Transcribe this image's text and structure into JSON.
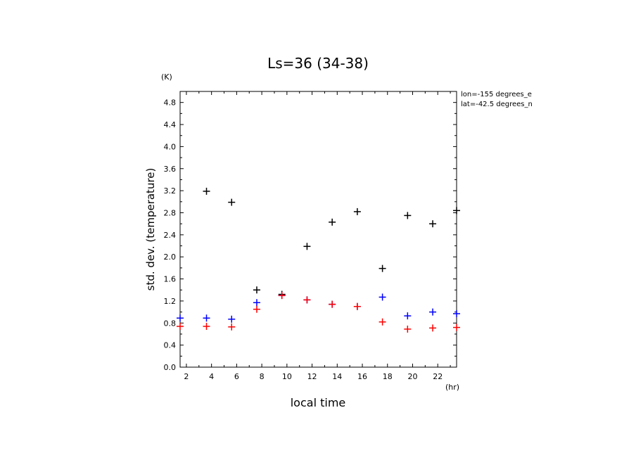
{
  "chart_data": {
    "type": "scatter",
    "title": "Ls=36 (34-38)",
    "xlabel": "local time",
    "ylabel": "std. dev. (temperature)",
    "x_units": "(hr)",
    "y_units": "(K)",
    "xlim": [
      1.5,
      23.5
    ],
    "ylim": [
      0.0,
      5.0
    ],
    "x_ticks": [
      2,
      4,
      6,
      8,
      10,
      12,
      14,
      16,
      18,
      20,
      22
    ],
    "y_ticks": [
      "0.0",
      "0.4",
      "0.8",
      "1.2",
      "1.6",
      "2.0",
      "2.4",
      "2.8",
      "3.2",
      "3.6",
      "4.0",
      "4.4",
      "4.8"
    ],
    "annotations": [
      "lon=-155 degrees_e",
      "lat=-42.5 degrees_n"
    ],
    "grid": false,
    "marker": "+",
    "series": [
      {
        "color": "#000000",
        "x": [
          3.6,
          5.6,
          7.6,
          9.6,
          11.6,
          13.6,
          15.6,
          17.6,
          19.6,
          21.6,
          23.5
        ],
        "y": [
          3.19,
          2.99,
          1.4,
          1.32,
          2.19,
          2.63,
          2.82,
          1.79,
          2.75,
          2.6,
          2.84
        ]
      },
      {
        "color": "#0000ff",
        "x": [
          1.5,
          3.6,
          5.6,
          7.6,
          9.6,
          11.6,
          13.6,
          15.6,
          17.6,
          19.6,
          21.6,
          23.5
        ],
        "y": [
          0.89,
          0.89,
          0.87,
          1.17,
          1.3,
          1.22,
          1.14,
          1.1,
          1.27,
          0.93,
          1.0,
          0.97
        ]
      },
      {
        "color": "#ff0000",
        "x": [
          1.5,
          3.6,
          5.6,
          7.6,
          9.6,
          11.6,
          13.6,
          15.6,
          17.6,
          19.6,
          21.6,
          23.5
        ],
        "y": [
          0.74,
          0.74,
          0.73,
          1.05,
          1.3,
          1.22,
          1.14,
          1.1,
          0.82,
          0.69,
          0.71,
          0.72
        ]
      }
    ]
  }
}
